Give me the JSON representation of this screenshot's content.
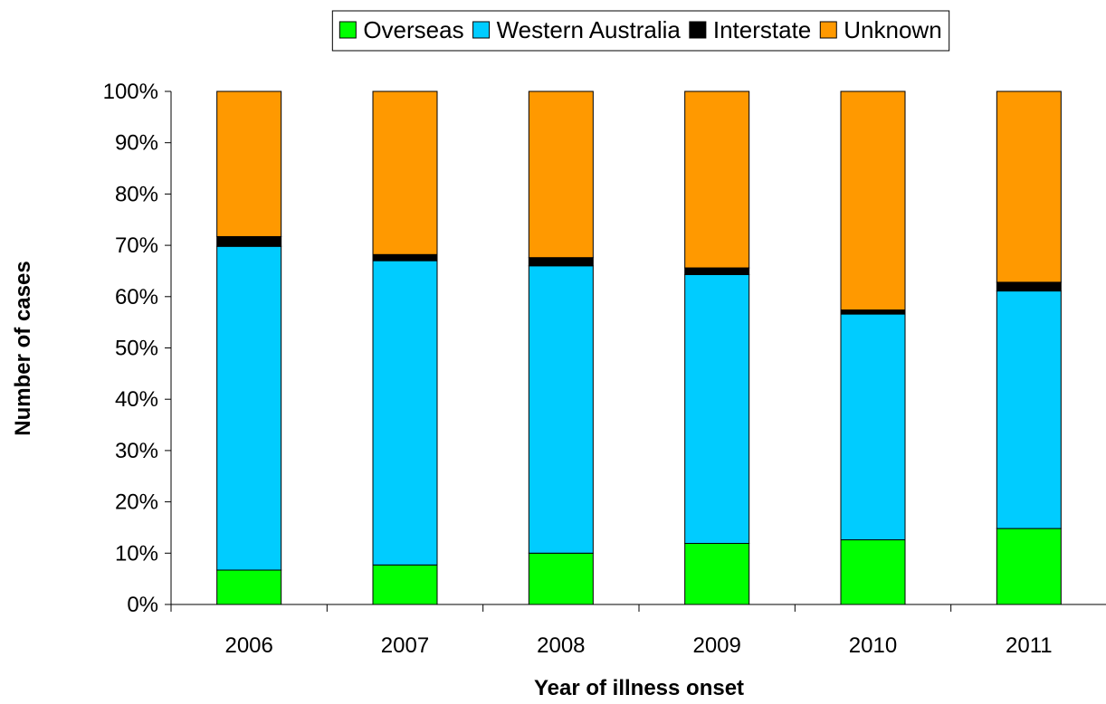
{
  "chart_data": {
    "type": "bar",
    "stacked": true,
    "percent": true,
    "categories": [
      "2006",
      "2007",
      "2008",
      "2009",
      "2010",
      "2011"
    ],
    "series": [
      {
        "name": "Overseas",
        "color": "#00FF00",
        "values": [
          6.7,
          7.7,
          10.0,
          11.9,
          12.6,
          14.8
        ]
      },
      {
        "name": "Western Australia",
        "color": "#00CCFF",
        "values": [
          63.1,
          59.3,
          56.0,
          52.4,
          44.0,
          46.3
        ]
      },
      {
        "name": "Interstate",
        "color": "#000000",
        "values": [
          1.9,
          1.2,
          1.6,
          1.3,
          0.8,
          1.7
        ]
      },
      {
        "name": "Unknown",
        "color": "#FF9900",
        "values": [
          28.3,
          31.8,
          32.4,
          34.4,
          42.6,
          37.2
        ]
      }
    ],
    "yticks": [
      "0%",
      "10%",
      "20%",
      "30%",
      "40%",
      "50%",
      "60%",
      "70%",
      "80%",
      "90%",
      "100%"
    ],
    "ylim": [
      0,
      100
    ],
    "xlabel": "Year of illness onset",
    "ylabel": "Number of cases",
    "legend": "top",
    "grid": false
  }
}
